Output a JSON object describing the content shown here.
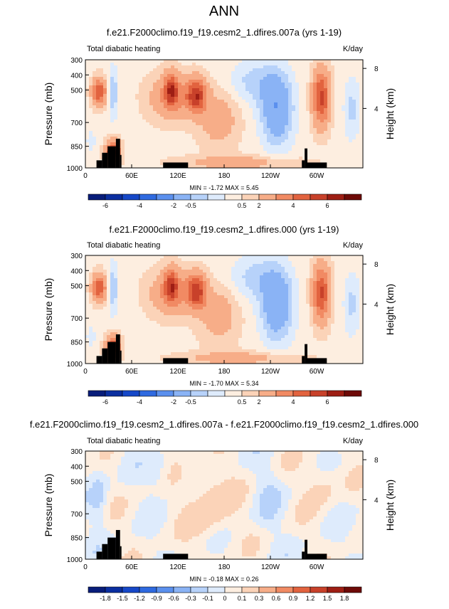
{
  "page_title": "ANN",
  "colorbar_palette": [
    "#081d7a",
    "#0b2fa0",
    "#1648c8",
    "#2f6ae0",
    "#5b90ee",
    "#8ab3f5",
    "#b7d2fa",
    "#deebfc",
    "#fdeee0",
    "#fbd3b8",
    "#f7ad88",
    "#f18a63",
    "#e2633f",
    "#c8412a",
    "#9e1e14",
    "#6e0a07"
  ],
  "chart_data": [
    {
      "type": "heatmap",
      "title": "f.e21.F2000climo.f19_f19.cesm2_1.dfires.007a (yrs 1-19)",
      "subtitle_left": "Total diabatic heating",
      "subtitle_right": "K/day",
      "ylabel": "Pressure (mb)",
      "ylabel_right": "Height (km)",
      "x_ticks": [
        "0",
        "60E",
        "120E",
        "180",
        "120W",
        "60W"
      ],
      "y_ticks": [
        "300",
        "400",
        "500",
        "700",
        "850",
        "1000"
      ],
      "y_right_ticks": [
        "8",
        "4"
      ],
      "stats": "MIN = -1.72   MAX =  5.45",
      "colorbar_labels": [
        "-6",
        "-4",
        "-2",
        "-0.5",
        "0.5",
        "2",
        "4",
        "6"
      ],
      "levels": [
        -6,
        -5,
        -4,
        -3,
        -2,
        -1,
        -0.5,
        0,
        0.5,
        1,
        2,
        3,
        4,
        5,
        6
      ],
      "scale": 5.45,
      "min": -1.72,
      "max": 5.45
    },
    {
      "type": "heatmap",
      "title": "f.e21.F2000climo.f19_f19.cesm2_1.dfires.000 (yrs 1-19)",
      "subtitle_left": "Total diabatic heating",
      "subtitle_right": "K/day",
      "ylabel": "Pressure (mb)",
      "ylabel_right": "Height (km)",
      "x_ticks": [
        "0",
        "60E",
        "120E",
        "180",
        "120W",
        "60W"
      ],
      "y_ticks": [
        "300",
        "400",
        "500",
        "700",
        "850",
        "1000"
      ],
      "y_right_ticks": [
        "8",
        "4"
      ],
      "stats": "MIN = -1.70   MAX =  5.34",
      "colorbar_labels": [
        "-6",
        "-4",
        "-2",
        "-0.5",
        "0.5",
        "2",
        "4",
        "6"
      ],
      "levels": [
        -6,
        -5,
        -4,
        -3,
        -2,
        -1,
        -0.5,
        0,
        0.5,
        1,
        2,
        3,
        4,
        5,
        6
      ],
      "scale": 5.34,
      "min": -1.7,
      "max": 5.34
    },
    {
      "type": "heatmap",
      "title": "f.e21.F2000climo.f19_f19.cesm2_1.dfires.007a - f.e21.F2000climo.f19_f19.cesm2_1.dfires.000",
      "subtitle_left": "Total diabatic heating",
      "subtitle_right": "K/day",
      "ylabel": "Pressure (mb)",
      "ylabel_right": "Height (km)",
      "x_ticks": [
        "0",
        "60E",
        "120E",
        "180",
        "120W",
        "60W"
      ],
      "y_ticks": [
        "300",
        "400",
        "500",
        "700",
        "850",
        "1000"
      ],
      "y_right_ticks": [
        "8",
        "4"
      ],
      "stats": "MIN = -0.18   MAX =  0.26",
      "colorbar_labels": [
        "-1.8",
        "-1.5",
        "-1.2",
        "-0.9",
        "-0.6",
        "-0.3",
        "-0.1",
        "0",
        "0.1",
        "0.3",
        "0.6",
        "0.9",
        "1.2",
        "1.5",
        "1.8"
      ],
      "levels": [
        -1.8,
        -1.5,
        -1.2,
        -0.9,
        -0.6,
        -0.3,
        -0.1,
        0,
        0.1,
        0.3,
        0.6,
        0.9,
        1.2,
        1.5,
        1.8
      ],
      "scale": 0.26,
      "min": -0.18,
      "max": 0.26
    }
  ]
}
